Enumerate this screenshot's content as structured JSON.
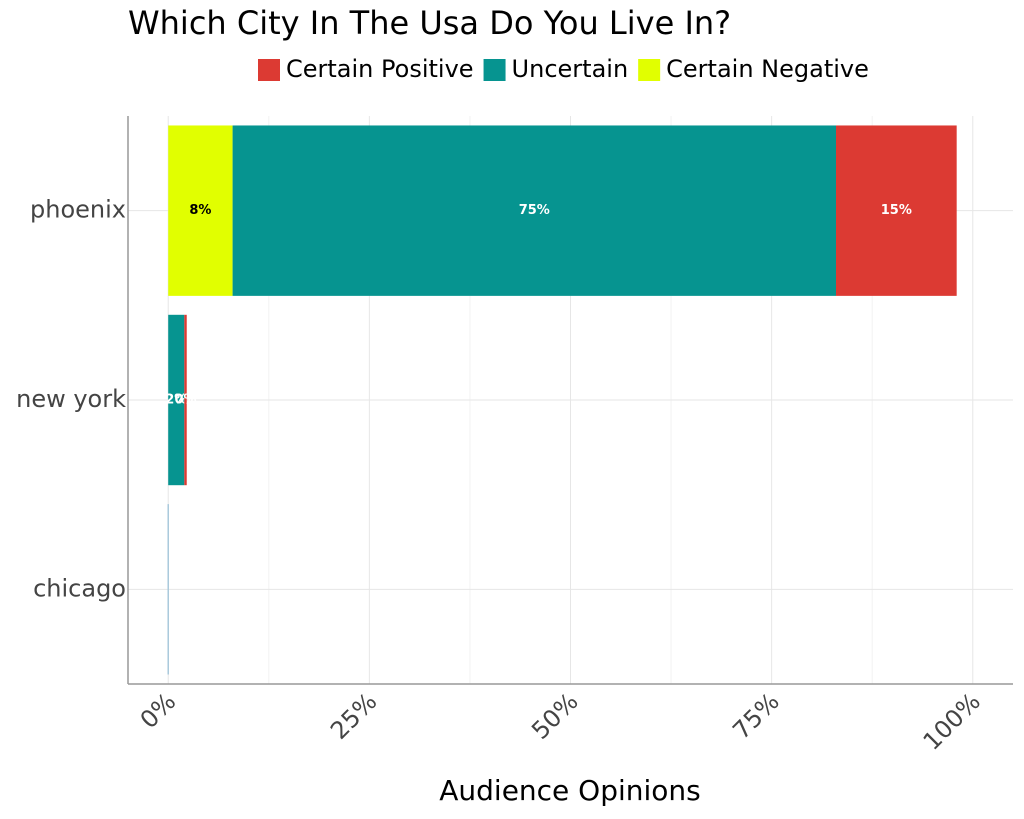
{
  "chart_data": {
    "type": "stacked_barh",
    "title": "Which City In The Usa Do You Live In?",
    "xlabel": "Audience Opinions",
    "categories": [
      "phoenix",
      "new york",
      "chicago"
    ],
    "series": [
      {
        "name": "Certain Negative",
        "color": "#e1ff00",
        "values": [
          8,
          0,
          0
        ],
        "value_labels": [
          "8%",
          null,
          null
        ]
      },
      {
        "name": "Uncertain",
        "color": "#069490",
        "values": [
          75,
          2,
          0
        ],
        "value_labels": [
          "75%",
          "2%",
          null
        ]
      },
      {
        "name": "Certain Positive",
        "color": "#dc3a33",
        "values": [
          15,
          0.3,
          0
        ],
        "value_labels": [
          "15%",
          "0%",
          null
        ]
      }
    ],
    "legend_order": [
      2,
      1,
      0
    ],
    "xlim": [
      -5,
      105
    ],
    "xticks": [
      {
        "value": 0,
        "label": "0%"
      },
      {
        "value": 25,
        "label": "25%"
      },
      {
        "value": 50,
        "label": "50%"
      },
      {
        "value": 75,
        "label": "75%"
      },
      {
        "value": 100,
        "label": "100%"
      }
    ],
    "grid": true,
    "legend": "top"
  }
}
